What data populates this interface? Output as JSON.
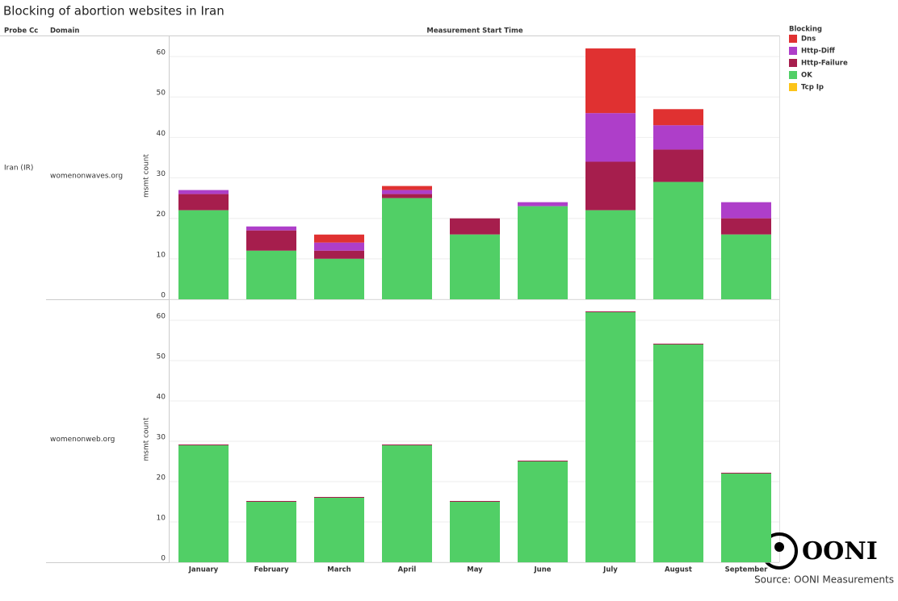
{
  "title": "Blocking of abortion websites in Iran",
  "headers": {
    "probe_cc": "Probe Cc",
    "domain": "Domain",
    "time": "Measurement Start Time"
  },
  "probe_cc": "Iran (IR)",
  "legend_title": "Blocking",
  "source": "Source: OONI Measurements",
  "logo": "OONI",
  "chart_data": [
    {
      "type": "stacked-bar",
      "domain": "womenonwaves.org",
      "y_label": "msmt count",
      "series": [
        {
          "name": "Dns",
          "color": "#e03131",
          "values": [
            0,
            0,
            2,
            1,
            0,
            0,
            16,
            4,
            0
          ]
        },
        {
          "name": "Http-Diff",
          "color": "#ae3ec9",
          "values": [
            1,
            1,
            2,
            1,
            0,
            1,
            12,
            6,
            4
          ]
        },
        {
          "name": "Http-Failure",
          "color": "#a61e4d",
          "values": [
            4,
            5,
            2,
            1,
            4,
            0,
            12,
            8,
            4
          ]
        },
        {
          "name": "OK",
          "color": "#51cf66",
          "values": [
            22,
            12,
            10,
            25,
            16,
            23,
            22,
            29,
            16
          ]
        },
        {
          "name": "Tcp Ip",
          "color": "#fcc419",
          "values": [
            0,
            0,
            0,
            0,
            0,
            0,
            0,
            0,
            0
          ]
        }
      ],
      "ylim": [
        0,
        65
      ],
      "yticks": [
        0,
        10,
        20,
        30,
        40,
        50,
        60
      ],
      "grid": true
    },
    {
      "type": "bar",
      "domain": "womenonweb.org",
      "y_label": "msmt count",
      "categories": [
        "January",
        "February",
        "March",
        "April",
        "May",
        "June",
        "July",
        "August",
        "September"
      ],
      "values": [
        29,
        15,
        16,
        29,
        15,
        25,
        62,
        54,
        22
      ],
      "color": "#51cf66",
      "ylim": [
        0,
        65
      ],
      "yticks": [
        0,
        10,
        20,
        30,
        40,
        50,
        60
      ],
      "grid": true
    }
  ]
}
